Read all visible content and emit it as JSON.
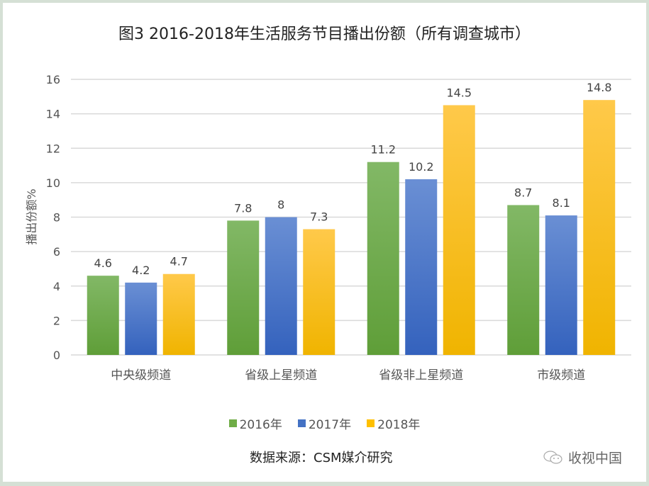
{
  "chart_data": {
    "type": "bar",
    "title": "图3  2016-2018年生活服务节目播出份额（所有调查城市）",
    "ylabel": "播出份额%",
    "xlabel": "",
    "ylim": [
      0,
      16
    ],
    "yticks": [
      0,
      2,
      4,
      6,
      8,
      10,
      12,
      14,
      16
    ],
    "grid": true,
    "legend_position": "bottom",
    "categories": [
      "中央级频道",
      "省级上星频道",
      "省级非上星频道",
      "市级频道"
    ],
    "series": [
      {
        "name": "2016年",
        "color": "#70ad47",
        "values": [
          4.6,
          7.8,
          11.2,
          8.7
        ]
      },
      {
        "name": "2017年",
        "color": "#4472c4",
        "values": [
          4.2,
          8,
          10.2,
          8.1
        ]
      },
      {
        "name": "2018年",
        "color": "#ffc000",
        "values": [
          4.7,
          7.3,
          14.5,
          14.8
        ]
      }
    ]
  },
  "footer": {
    "source": "数据来源：CSM媒介研究",
    "watermark": "收视中国",
    "watermark_icon": "wechat-icon"
  }
}
